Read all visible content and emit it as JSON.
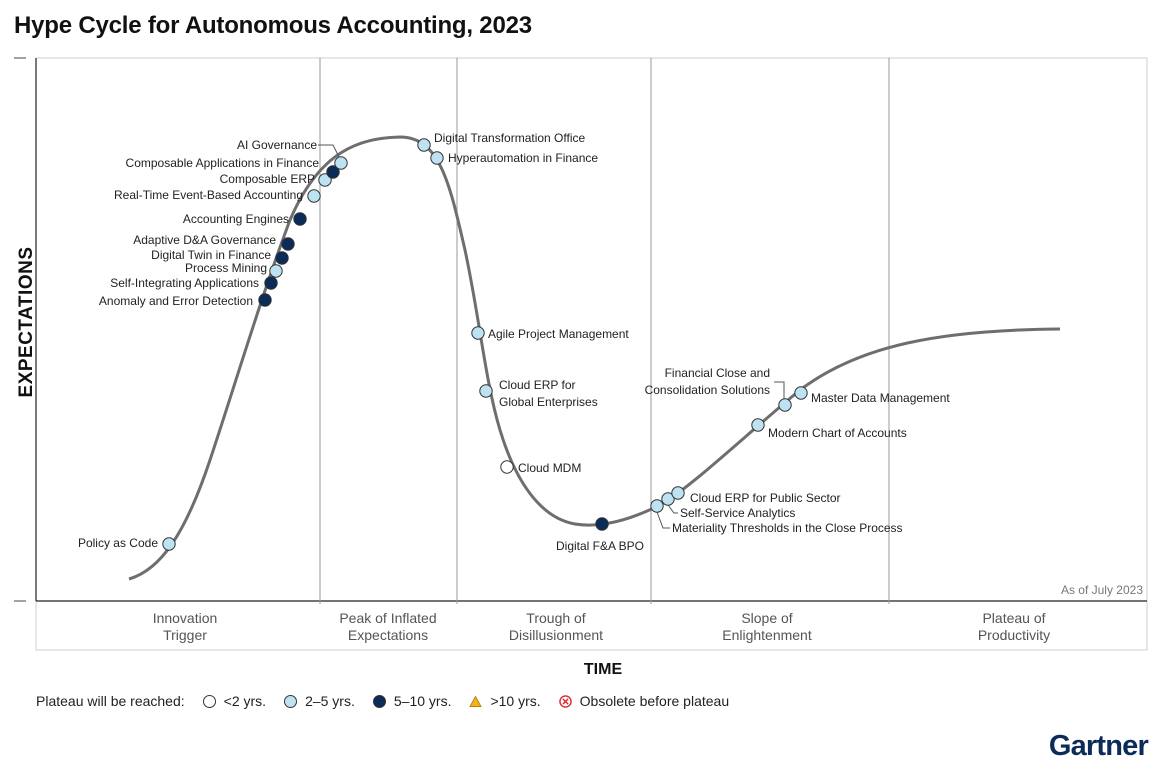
{
  "title": "Hype Cycle for Autonomous Accounting, 2023",
  "y_axis_label": "EXPECTATIONS",
  "x_axis_label": "TIME",
  "as_of": "As of July 2023",
  "phases": [
    {
      "line1": "Innovation",
      "line2": "Trigger"
    },
    {
      "line1": "Peak of Inflated",
      "line2": "Expectations"
    },
    {
      "line1": "Trough of",
      "line2": "Disillusionment"
    },
    {
      "line1": "Slope of",
      "line2": "Enlightenment"
    },
    {
      "line1": "Plateau of",
      "line2": "Productivity"
    }
  ],
  "colors": {
    "lt2": "#ffffff",
    "y2to5": "#bde3f2",
    "y5to10": "#0b2b59",
    "gt10": "#f2b21b",
    "obsolete": "#e0262d",
    "curve": "#6e6e6e",
    "brand": "#0b2b59"
  },
  "legend": {
    "prefix": "Plateau will be reached:",
    "items": [
      {
        "symbol": "lt2",
        "label": "<2 yrs."
      },
      {
        "symbol": "y2to5",
        "label": "2–5 yrs."
      },
      {
        "symbol": "y5to10",
        "label": "5–10 yrs."
      },
      {
        "symbol": "gt10",
        "label": ">10 yrs."
      },
      {
        "symbol": "obsolete",
        "label": "Obsolete before plateau"
      }
    ]
  },
  "technologies": [
    {
      "name": "Policy as Code",
      "plateau": "y2to5"
    },
    {
      "name": "Anomaly and Error Detection",
      "plateau": "y5to10"
    },
    {
      "name": "Self-Integrating Applications",
      "plateau": "y5to10"
    },
    {
      "name": "Process Mining",
      "plateau": "y2to5"
    },
    {
      "name": "Digital Twin in Finance",
      "plateau": "y5to10"
    },
    {
      "name": "Adaptive D&A Governance",
      "plateau": "y5to10"
    },
    {
      "name": "Accounting Engines",
      "plateau": "y5to10"
    },
    {
      "name": "Real-Time Event-Based Accounting",
      "plateau": "y2to5"
    },
    {
      "name": "Composable ERP",
      "plateau": "y2to5"
    },
    {
      "name": "Composable Applications in Finance",
      "plateau": "y5to10"
    },
    {
      "name": "AI Governance",
      "plateau": "y2to5"
    },
    {
      "name": "Digital Transformation Office",
      "plateau": "y2to5"
    },
    {
      "name": "Hyperautomation in Finance",
      "plateau": "y2to5"
    },
    {
      "name": "Agile Project Management",
      "plateau": "y2to5"
    },
    {
      "name": "Cloud ERP for\nGlobal Enterprises",
      "plateau": "y2to5"
    },
    {
      "name": "Cloud MDM",
      "plateau": "lt2"
    },
    {
      "name": "Digital F&A BPO",
      "plateau": "y5to10"
    },
    {
      "name": "Materiality Thresholds in the Close Process",
      "plateau": "y2to5"
    },
    {
      "name": "Self-Service Analytics",
      "plateau": "y2to5"
    },
    {
      "name": "Cloud ERP for Public Sector",
      "plateau": "y2to5"
    },
    {
      "name": "Modern Chart of Accounts",
      "plateau": "y2to5"
    },
    {
      "name": "Financial Close and\nConsolidation Solutions",
      "plateau": "y2to5"
    },
    {
      "name": "Master Data Management",
      "plateau": "y2to5"
    }
  ],
  "brand": "Gartner"
}
